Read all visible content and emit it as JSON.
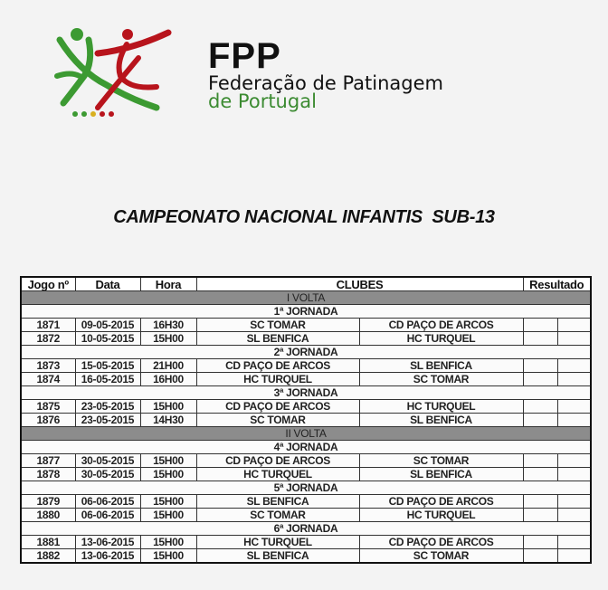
{
  "header": {
    "logo_abbr": "FPP",
    "org_name": "Federação de Patinagem",
    "org_country": "de Portugal",
    "colors": {
      "green": "#3c9a32",
      "red": "#b8141c",
      "yellow": "#d9b020"
    }
  },
  "title": "CAMPEONATO NACIONAL INFANTIS  SUB-13",
  "table": {
    "columns": [
      "Jogo nº",
      "Data",
      "Hora",
      "CLUBES",
      "Resultado"
    ],
    "colors": {
      "volta": "#8c8c8c",
      "jornada": "#f2f200"
    },
    "rows": [
      {
        "type": "volta",
        "label": "I VOLTA"
      },
      {
        "type": "jornada",
        "label": "1ª JORNADA"
      },
      {
        "type": "game",
        "jogo": "1871",
        "data": "09-05-2015",
        "hora": "16H30",
        "home": "SC TOMAR",
        "away": "CD PAÇO DE ARCOS"
      },
      {
        "type": "game",
        "jogo": "1872",
        "data": "10-05-2015",
        "hora": "15H00",
        "home": "SL BENFICA",
        "away": "HC TURQUEL"
      },
      {
        "type": "jornada",
        "label": "2ª JORNADA"
      },
      {
        "type": "game",
        "jogo": "1873",
        "data": "15-05-2015",
        "hora": "21H00",
        "home": "CD PAÇO DE ARCOS",
        "away": "SL BENFICA"
      },
      {
        "type": "game",
        "jogo": "1874",
        "data": "16-05-2015",
        "hora": "16H00",
        "home": "HC TURQUEL",
        "away": "SC TOMAR"
      },
      {
        "type": "jornada",
        "label": "3ª JORNADA"
      },
      {
        "type": "game",
        "jogo": "1875",
        "data": "23-05-2015",
        "hora": "15H00",
        "home": "CD PAÇO DE ARCOS",
        "away": "HC TURQUEL"
      },
      {
        "type": "game",
        "jogo": "1876",
        "data": "23-05-2015",
        "hora": "14H30",
        "home": "SC TOMAR",
        "away": "SL BENFICA"
      },
      {
        "type": "volta",
        "label": "II VOLTA"
      },
      {
        "type": "jornada",
        "label": "4ª JORNADA"
      },
      {
        "type": "game",
        "jogo": "1877",
        "data": "30-05-2015",
        "hora": "15H00",
        "home": "CD PAÇO DE ARCOS",
        "away": "SC TOMAR"
      },
      {
        "type": "game",
        "jogo": "1878",
        "data": "30-05-2015",
        "hora": "15H00",
        "home": "HC TURQUEL",
        "away": "SL BENFICA"
      },
      {
        "type": "jornada",
        "label": "5ª JORNADA"
      },
      {
        "type": "game",
        "jogo": "1879",
        "data": "06-06-2015",
        "hora": "15H00",
        "home": "SL BENFICA",
        "away": "CD PAÇO DE ARCOS"
      },
      {
        "type": "game",
        "jogo": "1880",
        "data": "06-06-2015",
        "hora": "15H00",
        "home": "SC TOMAR",
        "away": "HC TURQUEL"
      },
      {
        "type": "jornada",
        "label": "6ª JORNADA"
      },
      {
        "type": "game",
        "jogo": "1881",
        "data": "13-06-2015",
        "hora": "15H00",
        "home": "HC TURQUEL",
        "away": "CD PAÇO DE ARCOS"
      },
      {
        "type": "game",
        "jogo": "1882",
        "data": "13-06-2015",
        "hora": "15H00",
        "home": "SL BENFICA",
        "away": "SC TOMAR"
      }
    ]
  }
}
